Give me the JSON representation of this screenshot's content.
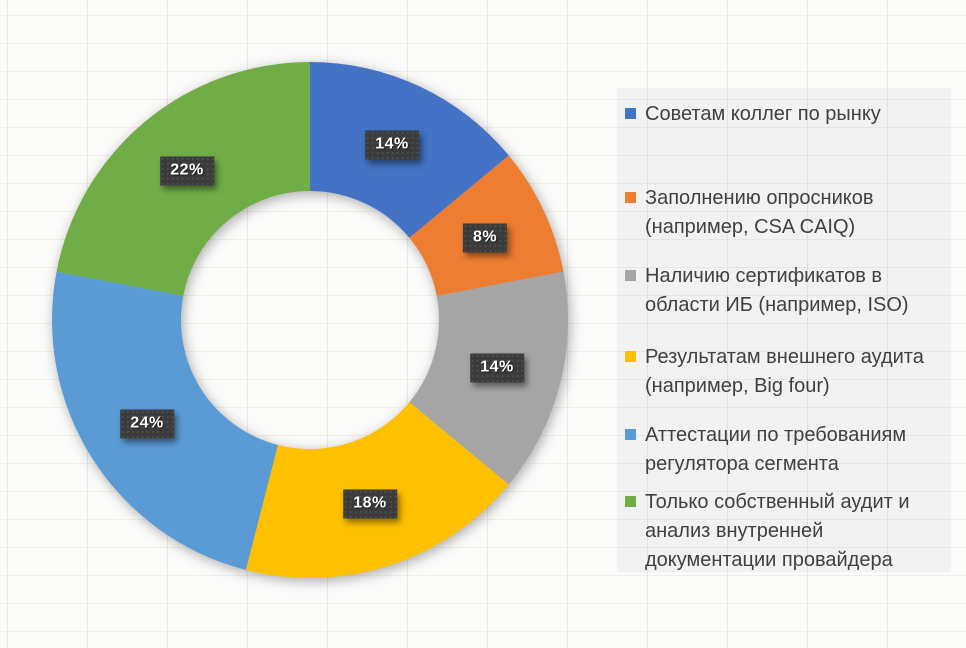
{
  "chart_data": {
    "type": "pie",
    "subtype": "donut",
    "title": "",
    "categories": [
      "Советам коллег по рынку",
      "Заполнению опросников (например, CSA CAIQ)",
      "Наличию сертификатов в области ИБ (например, ISO)",
      "Результатам внешнего аудита (например, Big four)",
      "Аттестации по требованиям регулятора сегмента",
      "Только собственный аудит и анализ внутренней документации провайдера"
    ],
    "values": [
      14,
      8,
      14,
      18,
      24,
      22
    ],
    "data_labels": [
      "14%",
      "8%",
      "14%",
      "18%",
      "24%",
      "22%"
    ],
    "colors": [
      "#4472C4",
      "#ED7D31",
      "#A5A5A5",
      "#FFC000",
      "#5B9BD5",
      "#70AD47"
    ],
    "legend_position": "right",
    "donut_hole_ratio": 0.5,
    "start_angle_deg": 0,
    "direction": "clockwise"
  },
  "legend": {
    "items": [
      {
        "label": "Советам коллег по рынку",
        "color": "#4472C4"
      },
      {
        "label": "Заполнению опросников\n(например, CSA CAIQ)",
        "color": "#ED7D31"
      },
      {
        "label": "Наличию сертификатов в\nобласти ИБ (например, ISO)",
        "color": "#A5A5A5"
      },
      {
        "label": "Результатам внешнего аудита\n(например, Big four)",
        "color": "#FFC000"
      },
      {
        "label": "Аттестации по требованиям\nрегулятора сегмента",
        "color": "#5B9BD5"
      },
      {
        "label": "Только собственный аудит и\nанализ внутренней\nдокументации провайдера",
        "color": "#70AD47"
      }
    ]
  },
  "label_style": {
    "background": "#3B3B3B",
    "text_color": "#FFFFFF"
  }
}
